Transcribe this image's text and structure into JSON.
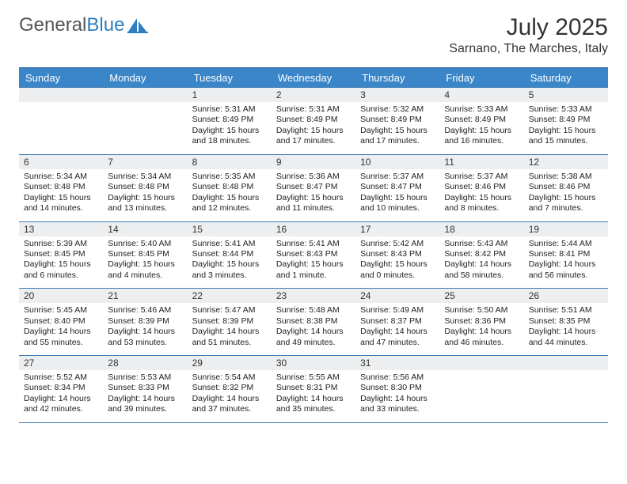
{
  "logo": {
    "textGray": "General",
    "textBlue": "Blue",
    "iconColor": "#2d7fc1"
  },
  "title": {
    "month": "July 2025",
    "location": "Sarnano, The Marches, Italy"
  },
  "colors": {
    "headerRow": "#3b86c8",
    "rule": "#3b7bb5",
    "dayNumBg": "#eceef0"
  },
  "weekdays": [
    "Sunday",
    "Monday",
    "Tuesday",
    "Wednesday",
    "Thursday",
    "Friday",
    "Saturday"
  ],
  "weeks": [
    [
      null,
      null,
      {
        "n": "1",
        "sr": "5:31 AM",
        "ss": "8:49 PM",
        "dl": "15 hours and 18 minutes."
      },
      {
        "n": "2",
        "sr": "5:31 AM",
        "ss": "8:49 PM",
        "dl": "15 hours and 17 minutes."
      },
      {
        "n": "3",
        "sr": "5:32 AM",
        "ss": "8:49 PM",
        "dl": "15 hours and 17 minutes."
      },
      {
        "n": "4",
        "sr": "5:33 AM",
        "ss": "8:49 PM",
        "dl": "15 hours and 16 minutes."
      },
      {
        "n": "5",
        "sr": "5:33 AM",
        "ss": "8:49 PM",
        "dl": "15 hours and 15 minutes."
      }
    ],
    [
      {
        "n": "6",
        "sr": "5:34 AM",
        "ss": "8:48 PM",
        "dl": "15 hours and 14 minutes."
      },
      {
        "n": "7",
        "sr": "5:34 AM",
        "ss": "8:48 PM",
        "dl": "15 hours and 13 minutes."
      },
      {
        "n": "8",
        "sr": "5:35 AM",
        "ss": "8:48 PM",
        "dl": "15 hours and 12 minutes."
      },
      {
        "n": "9",
        "sr": "5:36 AM",
        "ss": "8:47 PM",
        "dl": "15 hours and 11 minutes."
      },
      {
        "n": "10",
        "sr": "5:37 AM",
        "ss": "8:47 PM",
        "dl": "15 hours and 10 minutes."
      },
      {
        "n": "11",
        "sr": "5:37 AM",
        "ss": "8:46 PM",
        "dl": "15 hours and 8 minutes."
      },
      {
        "n": "12",
        "sr": "5:38 AM",
        "ss": "8:46 PM",
        "dl": "15 hours and 7 minutes."
      }
    ],
    [
      {
        "n": "13",
        "sr": "5:39 AM",
        "ss": "8:45 PM",
        "dl": "15 hours and 6 minutes."
      },
      {
        "n": "14",
        "sr": "5:40 AM",
        "ss": "8:45 PM",
        "dl": "15 hours and 4 minutes."
      },
      {
        "n": "15",
        "sr": "5:41 AM",
        "ss": "8:44 PM",
        "dl": "15 hours and 3 minutes."
      },
      {
        "n": "16",
        "sr": "5:41 AM",
        "ss": "8:43 PM",
        "dl": "15 hours and 1 minute."
      },
      {
        "n": "17",
        "sr": "5:42 AM",
        "ss": "8:43 PM",
        "dl": "15 hours and 0 minutes."
      },
      {
        "n": "18",
        "sr": "5:43 AM",
        "ss": "8:42 PM",
        "dl": "14 hours and 58 minutes."
      },
      {
        "n": "19",
        "sr": "5:44 AM",
        "ss": "8:41 PM",
        "dl": "14 hours and 56 minutes."
      }
    ],
    [
      {
        "n": "20",
        "sr": "5:45 AM",
        "ss": "8:40 PM",
        "dl": "14 hours and 55 minutes."
      },
      {
        "n": "21",
        "sr": "5:46 AM",
        "ss": "8:39 PM",
        "dl": "14 hours and 53 minutes."
      },
      {
        "n": "22",
        "sr": "5:47 AM",
        "ss": "8:39 PM",
        "dl": "14 hours and 51 minutes."
      },
      {
        "n": "23",
        "sr": "5:48 AM",
        "ss": "8:38 PM",
        "dl": "14 hours and 49 minutes."
      },
      {
        "n": "24",
        "sr": "5:49 AM",
        "ss": "8:37 PM",
        "dl": "14 hours and 47 minutes."
      },
      {
        "n": "25",
        "sr": "5:50 AM",
        "ss": "8:36 PM",
        "dl": "14 hours and 46 minutes."
      },
      {
        "n": "26",
        "sr": "5:51 AM",
        "ss": "8:35 PM",
        "dl": "14 hours and 44 minutes."
      }
    ],
    [
      {
        "n": "27",
        "sr": "5:52 AM",
        "ss": "8:34 PM",
        "dl": "14 hours and 42 minutes."
      },
      {
        "n": "28",
        "sr": "5:53 AM",
        "ss": "8:33 PM",
        "dl": "14 hours and 39 minutes."
      },
      {
        "n": "29",
        "sr": "5:54 AM",
        "ss": "8:32 PM",
        "dl": "14 hours and 37 minutes."
      },
      {
        "n": "30",
        "sr": "5:55 AM",
        "ss": "8:31 PM",
        "dl": "14 hours and 35 minutes."
      },
      {
        "n": "31",
        "sr": "5:56 AM",
        "ss": "8:30 PM",
        "dl": "14 hours and 33 minutes."
      },
      null,
      null
    ]
  ],
  "labels": {
    "sunrise": "Sunrise: ",
    "sunset": "Sunset: ",
    "daylight": "Daylight: "
  }
}
